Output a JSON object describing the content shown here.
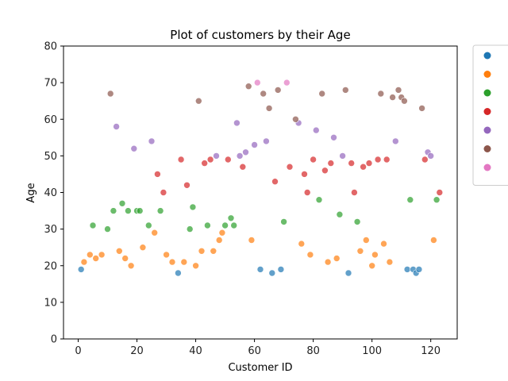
{
  "chart_data": {
    "type": "scatter",
    "title": "Plot of customers by their Age",
    "xlabel": "Customer ID",
    "ylabel": "Age",
    "xlim": [
      -5,
      129
    ],
    "ylim": [
      0,
      80
    ],
    "xticks": [
      "0",
      "20",
      "40",
      "60",
      "80",
      "100",
      "120"
    ],
    "yticks": [
      "0",
      "10",
      "20",
      "30",
      "40",
      "50",
      "60",
      "70",
      "80"
    ],
    "grid": false,
    "legend_placement": "outside-right",
    "series": [
      {
        "name": "",
        "color": "#1f77b4",
        "points": [
          [
            1,
            19
          ],
          [
            34,
            18
          ],
          [
            62,
            19
          ],
          [
            66,
            18
          ],
          [
            69,
            19
          ],
          [
            92,
            18
          ],
          [
            112,
            19
          ],
          [
            114,
            19
          ],
          [
            115,
            18
          ],
          [
            116,
            19
          ]
        ]
      },
      {
        "name": "",
        "color": "#ff7f0e",
        "points": [
          [
            2,
            21
          ],
          [
            4,
            23
          ],
          [
            6,
            22
          ],
          [
            8,
            23
          ],
          [
            14,
            24
          ],
          [
            16,
            22
          ],
          [
            18,
            20
          ],
          [
            22,
            25
          ],
          [
            26,
            29
          ],
          [
            30,
            23
          ],
          [
            32,
            21
          ],
          [
            36,
            21
          ],
          [
            40,
            20
          ],
          [
            42,
            24
          ],
          [
            46,
            24
          ],
          [
            48,
            27
          ],
          [
            49,
            29
          ],
          [
            59,
            27
          ],
          [
            76,
            26
          ],
          [
            79,
            23
          ],
          [
            85,
            21
          ],
          [
            88,
            22
          ],
          [
            96,
            24
          ],
          [
            98,
            27
          ],
          [
            100,
            20
          ],
          [
            101,
            23
          ],
          [
            104,
            26
          ],
          [
            106,
            21
          ],
          [
            121,
            27
          ]
        ]
      },
      {
        "name": "",
        "color": "#2ca02c",
        "points": [
          [
            5,
            31
          ],
          [
            10,
            30
          ],
          [
            12,
            35
          ],
          [
            15,
            37
          ],
          [
            17,
            35
          ],
          [
            20,
            35
          ],
          [
            21,
            35
          ],
          [
            24,
            31
          ],
          [
            28,
            35
          ],
          [
            38,
            30
          ],
          [
            39,
            36
          ],
          [
            44,
            31
          ],
          [
            50,
            31
          ],
          [
            52,
            33
          ],
          [
            53,
            31
          ],
          [
            70,
            32
          ],
          [
            82,
            38
          ],
          [
            89,
            34
          ],
          [
            95,
            32
          ],
          [
            113,
            38
          ],
          [
            122,
            38
          ]
        ]
      },
      {
        "name": "",
        "color": "#d62728",
        "points": [
          [
            27,
            45
          ],
          [
            29,
            40
          ],
          [
            35,
            49
          ],
          [
            37,
            42
          ],
          [
            43,
            48
          ],
          [
            45,
            49
          ],
          [
            51,
            49
          ],
          [
            56,
            47
          ],
          [
            67,
            43
          ],
          [
            72,
            47
          ],
          [
            77,
            45
          ],
          [
            78,
            40
          ],
          [
            80,
            49
          ],
          [
            84,
            46
          ],
          [
            86,
            48
          ],
          [
            93,
            48
          ],
          [
            94,
            40
          ],
          [
            97,
            47
          ],
          [
            99,
            48
          ],
          [
            102,
            49
          ],
          [
            105,
            49
          ],
          [
            118,
            49
          ],
          [
            123,
            40
          ]
        ]
      },
      {
        "name": "",
        "color": "#9467bd",
        "points": [
          [
            13,
            58
          ],
          [
            19,
            52
          ],
          [
            25,
            54
          ],
          [
            47,
            50
          ],
          [
            54,
            59
          ],
          [
            55,
            50
          ],
          [
            57,
            51
          ],
          [
            60,
            53
          ],
          [
            64,
            54
          ],
          [
            75,
            59
          ],
          [
            81,
            57
          ],
          [
            87,
            55
          ],
          [
            90,
            50
          ],
          [
            108,
            54
          ],
          [
            119,
            51
          ],
          [
            120,
            50
          ]
        ]
      },
      {
        "name": "",
        "color": "#8c564b",
        "points": [
          [
            11,
            67
          ],
          [
            41,
            65
          ],
          [
            58,
            69
          ],
          [
            63,
            67
          ],
          [
            65,
            63
          ],
          [
            68,
            68
          ],
          [
            74,
            60
          ],
          [
            83,
            67
          ],
          [
            91,
            68
          ],
          [
            103,
            67
          ],
          [
            107,
            66
          ],
          [
            109,
            68
          ],
          [
            110,
            66
          ],
          [
            111,
            65
          ],
          [
            117,
            63
          ]
        ]
      },
      {
        "name": "",
        "color": "#e377c2",
        "points": [
          [
            61,
            70
          ],
          [
            71,
            70
          ]
        ]
      }
    ]
  }
}
